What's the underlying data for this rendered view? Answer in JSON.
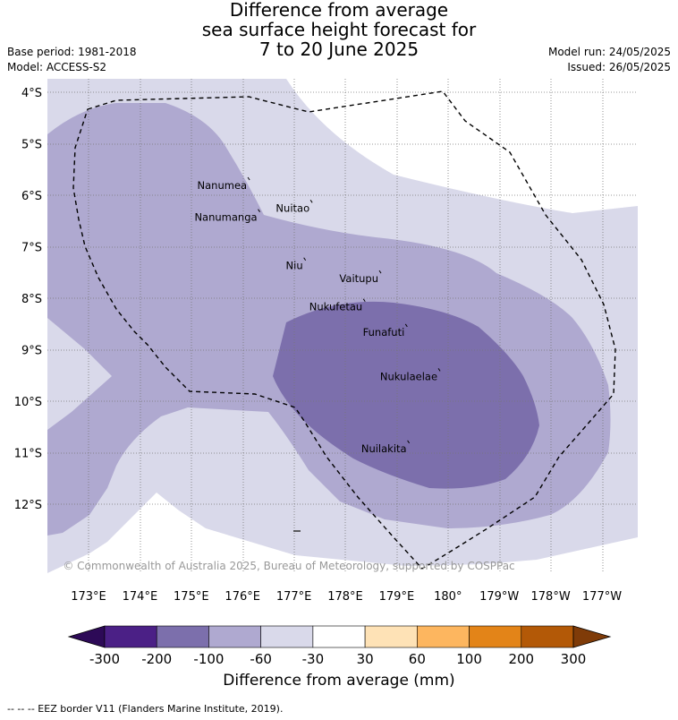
{
  "title": {
    "line1": "Difference from average",
    "line2": "sea surface height forecast for",
    "line3": "7 to 20 June 2025"
  },
  "meta": {
    "base_period": "Base period: 1981-2018",
    "model": "Model: ACCESS-S2",
    "model_run": "Model run: 24/05/2025",
    "issued": "Issued: 26/05/2025"
  },
  "map": {
    "lat_labels": [
      "4°S",
      "5°S",
      "6°S",
      "7°S",
      "8°S",
      "9°S",
      "10°S",
      "11°S",
      "12°S"
    ],
    "lon_labels": [
      "173°E",
      "174°E",
      "175°E",
      "176°E",
      "177°E",
      "178°E",
      "179°E",
      "180°",
      "179°W",
      "178°W",
      "177°W"
    ],
    "places": [
      {
        "name": "Nanumea",
        "lon": 176.12,
        "lat": -5.67
      },
      {
        "name": "Nuitao",
        "lon": 177.34,
        "lat": -6.11
      },
      {
        "name": "Nanumanga",
        "lon": 176.32,
        "lat": -6.29
      },
      {
        "name": "Niu",
        "lon": 177.21,
        "lat": -7.23
      },
      {
        "name": "Vaitupu",
        "lon": 178.68,
        "lat": -7.48
      },
      {
        "name": "Nukufetau",
        "lon": 178.37,
        "lat": -8.03
      },
      {
        "name": "Funafuti",
        "lon": 179.19,
        "lat": -8.52
      },
      {
        "name": "Nukulaelae",
        "lon": 179.83,
        "lat": -9.38
      },
      {
        "name": "Nuilakita",
        "lon": 179.23,
        "lat": -10.78
      }
    ],
    "copyright": "© Commonwealth of Australia 2025, Bureau of Meteorology, supported by COSPPac"
  },
  "legend": {
    "bins": [
      {
        "label": "-300",
        "color": "#4b2086"
      },
      {
        "label": "-200",
        "color": "#7c6fac"
      },
      {
        "label": "-100",
        "color": "#afa9d0"
      },
      {
        "label": "-60",
        "color": "#d9d9ea"
      },
      {
        "label": "-30",
        "color": "#ffffff"
      },
      {
        "label": "30",
        "color": "#fee2b6"
      },
      {
        "label": "60",
        "color": "#fdb65f"
      },
      {
        "label": "100",
        "color": "#e38418"
      },
      {
        "label": "200",
        "color": "#b35907"
      },
      {
        "label": "300",
        "color": "#7f3b08"
      }
    ],
    "low_extend_color": "#2d0a57",
    "title": "Difference from average (mm)"
  },
  "eez_note": "--  --  -- EEZ border V11 (Flanders Marine Institute, 2019)."
}
